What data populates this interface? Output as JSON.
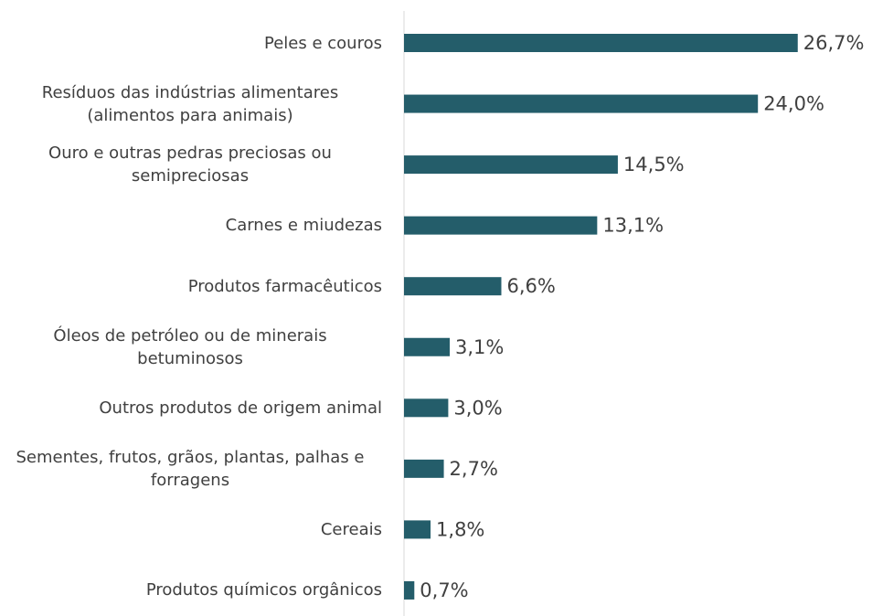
{
  "chart_data": {
    "type": "barh",
    "categories": [
      "Peles e couros",
      "Resíduos das indústrias alimentares (alimentos para animais)",
      "Ouro e outras pedras preciosas ou semipreciosas",
      "Carnes e miudezas",
      "Produtos farmacêuticos",
      "Óleos de petróleo ou de minerais betuminosos",
      "Outros produtos de origem animal",
      "Sementes, frutos, grãos, plantas, palhas e forragens",
      "Cereais",
      "Produtos químicos orgânicos"
    ],
    "values": [
      26.7,
      24.0,
      14.5,
      13.1,
      6.6,
      3.1,
      3.0,
      2.7,
      1.8,
      0.7
    ],
    "value_labels": [
      "26,7%",
      "24,0%",
      "14,5%",
      "13,1%",
      "6,6%",
      "3,1%",
      "3,0%",
      "2,7%",
      "1,8%",
      "0,7%"
    ],
    "color": "#245d6a",
    "xlim": [
      0,
      30
    ]
  }
}
